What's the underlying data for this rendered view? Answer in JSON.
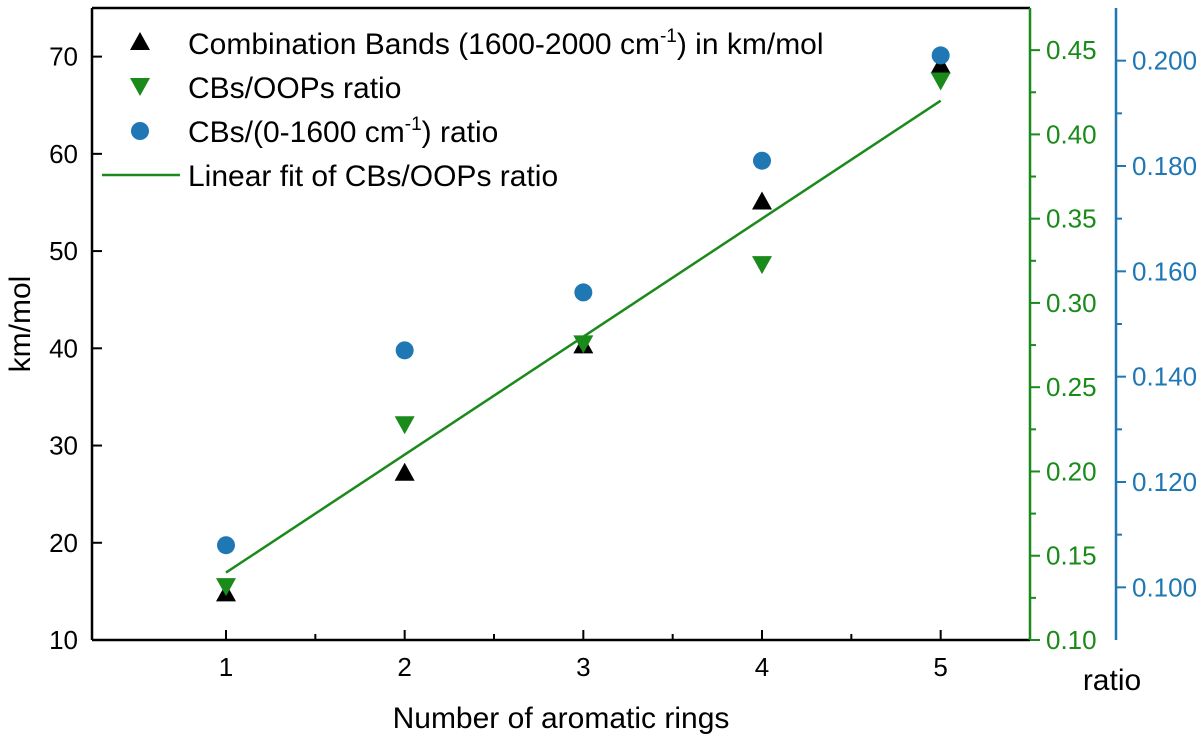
{
  "chart_data": {
    "type": "scatter",
    "xlabel": "Number of aromatic rings",
    "ylabel": "km/mol",
    "xlim": [
      0.25,
      5.5
    ],
    "x": [
      1,
      2,
      3,
      4,
      5
    ],
    "x_tick_labels": [
      "1",
      "2",
      "3",
      "4",
      "5"
    ],
    "left_axis": {
      "label": "km/mol",
      "range": [
        10,
        75
      ],
      "ticks": [
        10,
        20,
        30,
        40,
        50,
        60,
        70
      ],
      "tick_labels": [
        "10",
        "20",
        "30",
        "40",
        "50",
        "60",
        "70"
      ],
      "color": "#000000"
    },
    "green_axis": {
      "range": [
        0.1,
        0.475
      ],
      "ticks": [
        0.1,
        0.15,
        0.2,
        0.25,
        0.3,
        0.35,
        0.4,
        0.45
      ],
      "tick_labels": [
        "0.10",
        "0.15",
        "0.20",
        "0.25",
        "0.30",
        "0.35",
        "0.40",
        "0.45"
      ],
      "color": "#1a8a1a",
      "label": "ratio"
    },
    "blue_axis": {
      "range": [
        0.09,
        0.21
      ],
      "ticks": [
        0.1,
        0.12,
        0.14,
        0.16,
        0.18,
        0.2
      ],
      "tick_labels": [
        "0.100",
        "0.120",
        "0.140",
        "0.160",
        "0.180",
        "0.200"
      ],
      "color": "#1f77b4"
    },
    "series": [
      {
        "name": "Combination Bands (1600-2000 cm",
        "name_sup": "-1",
        "name_suffix": ") in km/mol",
        "marker": "triangle-up",
        "color": "#000000",
        "axis": "left",
        "values": [
          14.8,
          27.2,
          40.3,
          55.1,
          69.1
        ]
      },
      {
        "name": "CBs/OOPs ratio",
        "marker": "triangle-down",
        "color": "#1a8a1a",
        "axis": "green",
        "values": [
          0.132,
          0.228,
          0.276,
          0.323,
          0.432
        ]
      },
      {
        "name": "CBs/(0-1600 cm",
        "name_sup": "-1",
        "name_suffix": ") ratio",
        "marker": "circle",
        "color": "#1f77b4",
        "axis": "blue",
        "values": [
          0.108,
          0.145,
          0.156,
          0.181,
          0.201
        ]
      },
      {
        "name": "Linear fit of CBs/OOPs ratio",
        "marker": "line",
        "color": "#1a8a1a",
        "axis": "green",
        "x_range": [
          1,
          5
        ],
        "values": [
          0.14,
          0.42
        ]
      }
    ]
  }
}
